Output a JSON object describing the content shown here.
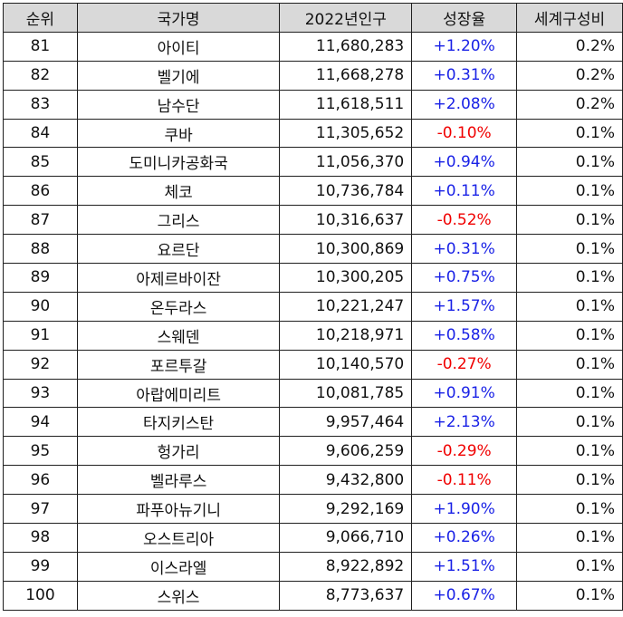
{
  "table": {
    "headers": [
      "순위",
      "국가명",
      "2022년인구",
      "성장율",
      "세계구성비"
    ],
    "rows": [
      {
        "rank": "81",
        "name": "아이티",
        "population": "11,680,283",
        "growth": "+1.20%",
        "share": "0.2%"
      },
      {
        "rank": "82",
        "name": "벨기에",
        "population": "11,668,278",
        "growth": "+0.31%",
        "share": "0.2%"
      },
      {
        "rank": "83",
        "name": "남수단",
        "population": "11,618,511",
        "growth": "+2.08%",
        "share": "0.2%"
      },
      {
        "rank": "84",
        "name": "쿠바",
        "population": "11,305,652",
        "growth": "-0.10%",
        "share": "0.1%"
      },
      {
        "rank": "85",
        "name": "도미니카공화국",
        "population": "11,056,370",
        "growth": "+0.94%",
        "share": "0.1%"
      },
      {
        "rank": "86",
        "name": "체코",
        "population": "10,736,784",
        "growth": "+0.11%",
        "share": "0.1%"
      },
      {
        "rank": "87",
        "name": "그리스",
        "population": "10,316,637",
        "growth": "-0.52%",
        "share": "0.1%"
      },
      {
        "rank": "88",
        "name": "요르단",
        "population": "10,300,869",
        "growth": "+0.31%",
        "share": "0.1%"
      },
      {
        "rank": "89",
        "name": "아제르바이잔",
        "population": "10,300,205",
        "growth": "+0.75%",
        "share": "0.1%"
      },
      {
        "rank": "90",
        "name": "온두라스",
        "population": "10,221,247",
        "growth": "+1.57%",
        "share": "0.1%"
      },
      {
        "rank": "91",
        "name": "스웨덴",
        "population": "10,218,971",
        "growth": "+0.58%",
        "share": "0.1%"
      },
      {
        "rank": "92",
        "name": "포르투갈",
        "population": "10,140,570",
        "growth": "-0.27%",
        "share": "0.1%"
      },
      {
        "rank": "93",
        "name": "아랍에미리트",
        "population": "10,081,785",
        "growth": "+0.91%",
        "share": "0.1%"
      },
      {
        "rank": "94",
        "name": "타지키스탄",
        "population": "9,957,464",
        "growth": "+2.13%",
        "share": "0.1%"
      },
      {
        "rank": "95",
        "name": "헝가리",
        "population": "9,606,259",
        "growth": "-0.29%",
        "share": "0.1%"
      },
      {
        "rank": "96",
        "name": "벨라루스",
        "population": "9,432,800",
        "growth": "-0.11%",
        "share": "0.1%"
      },
      {
        "rank": "97",
        "name": "파푸아뉴기니",
        "population": "9,292,169",
        "growth": "+1.90%",
        "share": "0.1%"
      },
      {
        "rank": "98",
        "name": "오스트리아",
        "population": "9,066,710",
        "growth": "+0.26%",
        "share": "0.1%"
      },
      {
        "rank": "99",
        "name": "이스라엘",
        "population": "8,922,892",
        "growth": "+1.51%",
        "share": "0.1%"
      },
      {
        "rank": "100",
        "name": "스위스",
        "population": "8,773,637",
        "growth": "+0.67%",
        "share": "0.1%"
      }
    ]
  },
  "colors": {
    "header_bg": "#d9d9d9",
    "positive_growth": "#1a22e6",
    "negative_growth": "#f00000",
    "border": "#1f1f1f"
  }
}
